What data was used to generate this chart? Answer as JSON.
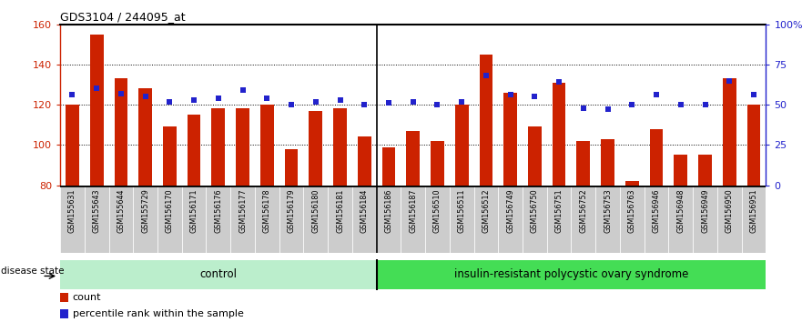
{
  "title": "GDS3104 / 244095_at",
  "samples": [
    "GSM155631",
    "GSM155643",
    "GSM155644",
    "GSM155729",
    "GSM156170",
    "GSM156171",
    "GSM156176",
    "GSM156177",
    "GSM156178",
    "GSM156179",
    "GSM156180",
    "GSM156181",
    "GSM156184",
    "GSM156186",
    "GSM156187",
    "GSM156510",
    "GSM156511",
    "GSM156512",
    "GSM156749",
    "GSM156750",
    "GSM156751",
    "GSM156752",
    "GSM156753",
    "GSM156763",
    "GSM156946",
    "GSM156948",
    "GSM156949",
    "GSM156950",
    "GSM156951"
  ],
  "counts": [
    120,
    155,
    133,
    128,
    109,
    115,
    118,
    118,
    120,
    98,
    117,
    118,
    104,
    99,
    107,
    102,
    120,
    145,
    126,
    109,
    131,
    102,
    103,
    82,
    108,
    95,
    95,
    133,
    120
  ],
  "percentiles": [
    56,
    60,
    57,
    55,
    52,
    53,
    54,
    59,
    54,
    50,
    52,
    53,
    50,
    51,
    52,
    50,
    52,
    68,
    56,
    55,
    64,
    48,
    47,
    50,
    56,
    50,
    50,
    65,
    56
  ],
  "control_count": 13,
  "disease_count": 16,
  "control_label": "control",
  "disease_label": "insulin-resistant polycystic ovary syndrome",
  "disease_state_label": "disease state",
  "ymin": 80,
  "ymax": 160,
  "yticks_left": [
    80,
    100,
    120,
    140,
    160
  ],
  "right_yticks": [
    0,
    25,
    50,
    75,
    100
  ],
  "right_ytick_labels": [
    "0",
    "25",
    "50",
    "75",
    "100%"
  ],
  "bar_color": "#CC2200",
  "dot_color": "#2222CC",
  "bar_bottom": 80,
  "legend_count_label": "count",
  "legend_pct_label": "percentile rank within the sample",
  "bar_width": 0.55,
  "ctrl_color_light": "#AAEEBB",
  "ctrl_color_dark": "#44CC44",
  "dis_color": "#44DD44"
}
